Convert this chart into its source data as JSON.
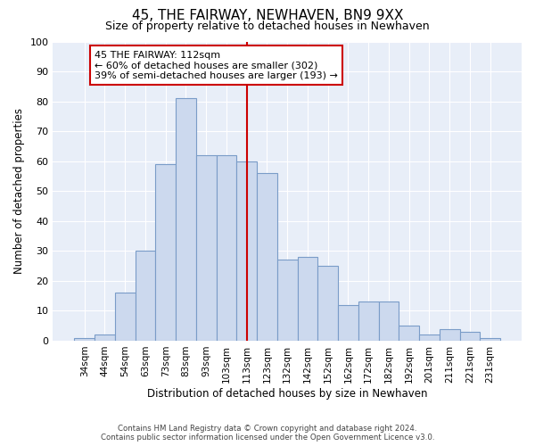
{
  "title": "45, THE FAIRWAY, NEWHAVEN, BN9 9XX",
  "subtitle": "Size of property relative to detached houses in Newhaven",
  "xlabel": "Distribution of detached houses by size in Newhaven",
  "ylabel": "Number of detached properties",
  "bar_labels": [
    "34sqm",
    "44sqm",
    "54sqm",
    "63sqm",
    "73sqm",
    "83sqm",
    "93sqm",
    "103sqm",
    "113sqm",
    "123sqm",
    "132sqm",
    "142sqm",
    "152sqm",
    "162sqm",
    "172sqm",
    "182sqm",
    "192sqm",
    "201sqm",
    "211sqm",
    "221sqm",
    "231sqm"
  ],
  "bar_values": [
    1,
    2,
    16,
    30,
    59,
    81,
    62,
    62,
    60,
    56,
    27,
    28,
    25,
    12,
    13,
    13,
    5,
    2,
    4,
    3,
    1
  ],
  "bar_color": "#ccd9ee",
  "bar_edge_color": "#7a9cc8",
  "vline_x_index": 8,
  "vline_color": "#cc0000",
  "annotation_title": "45 THE FAIRWAY: 112sqm",
  "annotation_line1": "← 60% of detached houses are smaller (302)",
  "annotation_line2": "39% of semi-detached houses are larger (193) →",
  "annotation_box_facecolor": "#ffffff",
  "annotation_box_edgecolor": "#cc0000",
  "ylim": [
    0,
    100
  ],
  "yticks": [
    0,
    10,
    20,
    30,
    40,
    50,
    60,
    70,
    80,
    90,
    100
  ],
  "footer_line1": "Contains HM Land Registry data © Crown copyright and database right 2024.",
  "footer_line2": "Contains public sector information licensed under the Open Government Licence v3.0.",
  "plot_bg_color": "#e8eef8",
  "fig_bg_color": "#ffffff",
  "grid_color": "#ffffff",
  "title_fontsize": 11,
  "subtitle_fontsize": 9
}
